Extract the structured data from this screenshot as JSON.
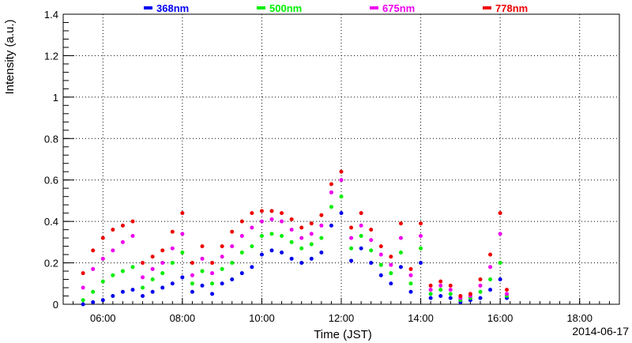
{
  "chart_data": {
    "type": "scatter",
    "xlabel": "Time (JST)",
    "ylabel": "Intensity (a.u.)",
    "date_label": "2014-06-17",
    "grid": true,
    "legend_position": "top",
    "xlim": [
      "05:00",
      "19:00"
    ],
    "ylim": [
      0,
      1.4
    ],
    "x_ticks": [
      "06:00",
      "08:00",
      "10:00",
      "12:00",
      "14:00",
      "16:00",
      "18:00"
    ],
    "y_ticks": [
      "0",
      "0.2",
      "0.4",
      "0.6",
      "0.8",
      "1",
      "1.2",
      "1.4"
    ],
    "x": [
      "05:30",
      "05:45",
      "06:00",
      "06:15",
      "06:30",
      "06:45",
      "07:00",
      "07:15",
      "07:30",
      "07:45",
      "08:00",
      "08:15",
      "08:30",
      "08:45",
      "09:00",
      "09:15",
      "09:30",
      "09:45",
      "10:00",
      "10:15",
      "10:30",
      "10:45",
      "11:00",
      "11:15",
      "11:30",
      "11:45",
      "12:00",
      "12:15",
      "12:30",
      "12:45",
      "13:00",
      "13:15",
      "13:30",
      "13:45",
      "14:00",
      "14:15",
      "14:30",
      "14:45",
      "15:00",
      "15:15",
      "15:30",
      "15:45",
      "16:00",
      "16:10"
    ],
    "series": [
      {
        "name": "368nm",
        "color": "#0000ee",
        "values": [
          0.0,
          0.01,
          0.02,
          0.04,
          0.06,
          0.07,
          0.04,
          0.06,
          0.08,
          0.1,
          0.13,
          0.06,
          0.09,
          0.05,
          0.1,
          0.12,
          0.15,
          0.18,
          0.24,
          0.26,
          0.25,
          0.22,
          0.2,
          0.22,
          0.25,
          0.38,
          0.44,
          0.21,
          0.27,
          0.2,
          0.14,
          0.1,
          0.18,
          0.06,
          0.2,
          0.03,
          0.04,
          0.03,
          0.01,
          0.02,
          0.03,
          0.07,
          0.12,
          0.03
        ]
      },
      {
        "name": "500nm",
        "color": "#00ee00",
        "values": [
          0.02,
          0.06,
          0.11,
          0.14,
          0.16,
          0.18,
          0.08,
          0.12,
          0.15,
          0.2,
          0.25,
          0.1,
          0.16,
          0.1,
          0.17,
          0.2,
          0.25,
          0.28,
          0.33,
          0.34,
          0.33,
          0.3,
          0.27,
          0.29,
          0.32,
          0.47,
          0.52,
          0.27,
          0.33,
          0.26,
          0.19,
          0.15,
          0.25,
          0.1,
          0.27,
          0.05,
          0.07,
          0.05,
          0.02,
          0.03,
          0.06,
          0.12,
          0.2,
          0.04
        ]
      },
      {
        "name": "675nm",
        "color": "#ee00ee",
        "values": [
          0.08,
          0.17,
          0.22,
          0.26,
          0.3,
          0.33,
          0.13,
          0.17,
          0.2,
          0.27,
          0.34,
          0.14,
          0.22,
          0.15,
          0.23,
          0.28,
          0.33,
          0.37,
          0.4,
          0.41,
          0.4,
          0.36,
          0.32,
          0.34,
          0.38,
          0.54,
          0.6,
          0.32,
          0.38,
          0.31,
          0.24,
          0.19,
          0.32,
          0.14,
          0.33,
          0.07,
          0.09,
          0.07,
          0.03,
          0.04,
          0.09,
          0.18,
          0.34,
          0.05
        ]
      },
      {
        "name": "778nm",
        "color": "#ee0000",
        "values": [
          0.15,
          0.26,
          0.32,
          0.36,
          0.38,
          0.4,
          0.2,
          0.23,
          0.26,
          0.35,
          0.44,
          0.2,
          0.28,
          0.2,
          0.28,
          0.35,
          0.4,
          0.44,
          0.45,
          0.45,
          0.44,
          0.41,
          0.37,
          0.39,
          0.43,
          0.58,
          0.64,
          0.37,
          0.44,
          0.36,
          0.28,
          0.23,
          0.39,
          0.17,
          0.39,
          0.09,
          0.11,
          0.09,
          0.04,
          0.05,
          0.12,
          0.24,
          0.44,
          0.07
        ]
      }
    ]
  }
}
